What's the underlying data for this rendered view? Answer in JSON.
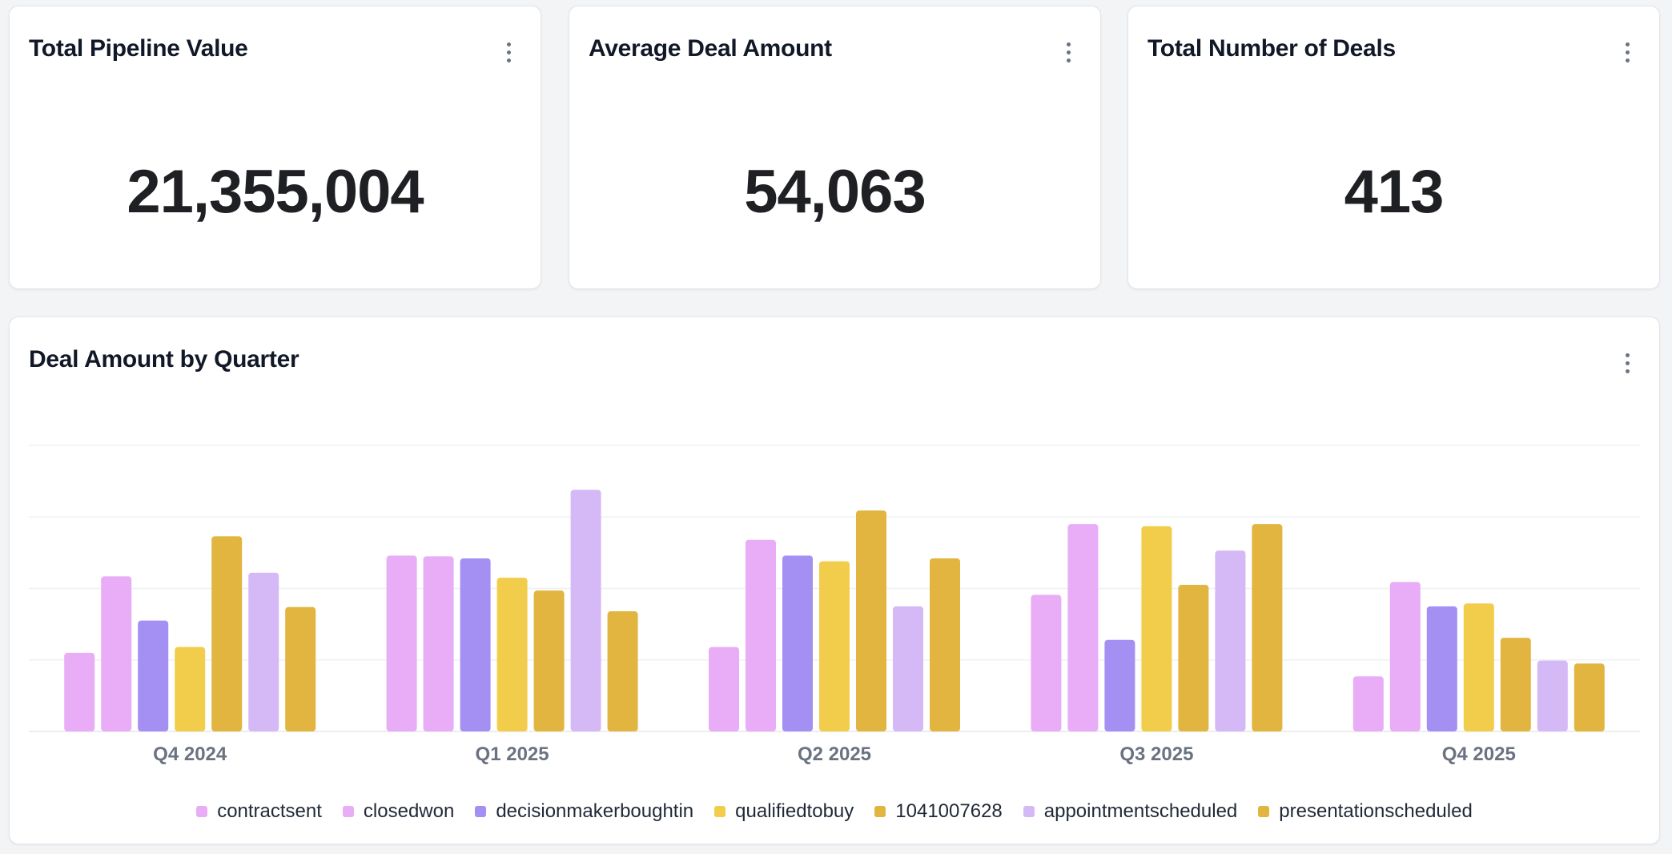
{
  "kpis": [
    {
      "title": "Total Pipeline Value",
      "value": "21,355,004"
    },
    {
      "title": "Average Deal Amount",
      "value": "54,063"
    },
    {
      "title": "Total Number of Deals",
      "value": "413"
    }
  ],
  "chart_card": {
    "title": "Deal Amount by Quarter"
  },
  "icons": {
    "menu": "more-vertical-icon"
  },
  "chart_data": {
    "type": "bar",
    "title": "Deal Amount by Quarter",
    "xlabel": "",
    "ylabel": "",
    "ylim": [
      0,
      4000000
    ],
    "grid": true,
    "legend_position": "bottom-center",
    "categories": [
      "Q4 2024",
      "Q1 2025",
      "Q2 2025",
      "Q3 2025",
      "Q4 2025"
    ],
    "series": [
      {
        "name": "contractsent",
        "color": "#e8adf6",
        "values": [
          1100000,
          2460000,
          1180000,
          1910000,
          770000
        ]
      },
      {
        "name": "closedwon",
        "color": "#e8adf6",
        "values": [
          2170000,
          2450000,
          2680000,
          2900000,
          2090000
        ]
      },
      {
        "name": "decisionmakerboughtin",
        "color": "#a48ff2",
        "values": [
          1550000,
          2420000,
          2460000,
          1280000,
          1750000
        ]
      },
      {
        "name": "qualifiedtobuy",
        "color": "#f2cd4b",
        "values": [
          1180000,
          2150000,
          2380000,
          2870000,
          1790000
        ]
      },
      {
        "name": "1041007628",
        "color": "#e2b540",
        "values": [
          2730000,
          1970000,
          3090000,
          2050000,
          1310000
        ]
      },
      {
        "name": "appointmentscheduled",
        "color": "#d5b9f6",
        "values": [
          2220000,
          3380000,
          1750000,
          2530000,
          990000
        ]
      },
      {
        "name": "presentationscheduled",
        "color": "#e2b540",
        "values": [
          1740000,
          1680000,
          2420000,
          2900000,
          950000
        ]
      }
    ]
  }
}
